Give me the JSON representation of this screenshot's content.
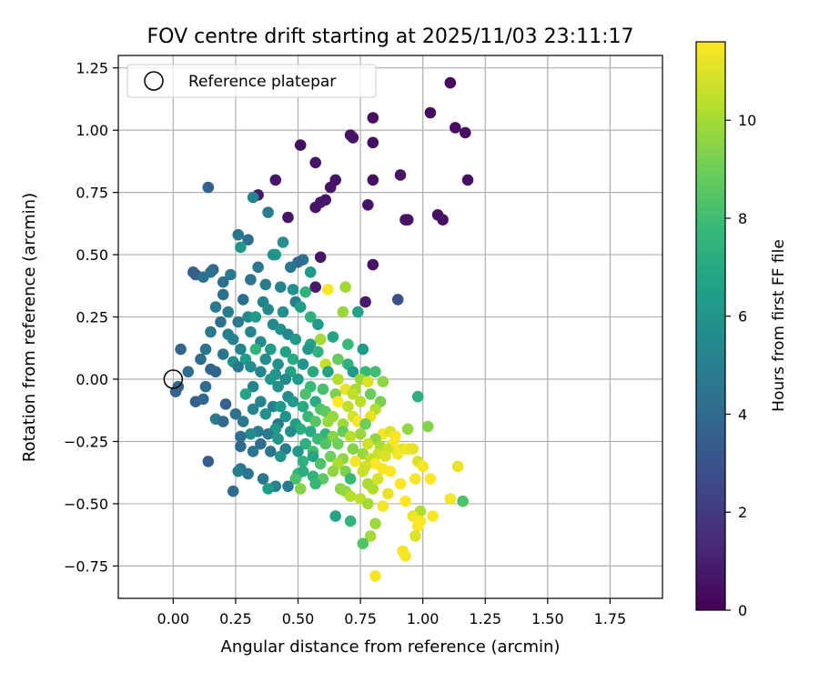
{
  "chart_data": {
    "type": "scatter",
    "title": "FOV centre drift starting at 2025/11/03 23:11:17",
    "xlabel": "Angular distance from reference (arcmin)",
    "ylabel": "Rotation from reference (arcmin)",
    "xlim": [
      -0.22,
      1.96
    ],
    "ylim": [
      -0.88,
      1.3
    ],
    "xticks": [
      0.0,
      0.25,
      0.5,
      0.75,
      1.0,
      1.25,
      1.5,
      1.75
    ],
    "xtick_labels": [
      "0.00",
      "0.25",
      "0.50",
      "0.75",
      "1.00",
      "1.25",
      "1.50",
      "1.75"
    ],
    "yticks": [
      -0.75,
      -0.5,
      -0.25,
      0.0,
      0.25,
      0.5,
      0.75,
      1.0,
      1.25
    ],
    "ytick_labels": [
      "−0.75",
      "−0.50",
      "−0.25",
      "0.00",
      "0.25",
      "0.50",
      "0.75",
      "1.00",
      "1.25"
    ],
    "grid": true,
    "legend": {
      "placement": "top-left",
      "label": "Reference platepar"
    },
    "reference_point": {
      "x": 0.0,
      "y": 0.0
    },
    "colorbar": {
      "label": "Hours from first FF file",
      "range": [
        0,
        11.6
      ],
      "ticks": [
        0,
        2,
        4,
        6,
        8,
        10
      ],
      "tick_labels": [
        "0",
        "2",
        "4",
        "6",
        "8",
        "10"
      ],
      "colormap": [
        "#440154",
        "#482878",
        "#3e4989",
        "#31688e",
        "#26828e",
        "#1f9e89",
        "#35b779",
        "#6ece58",
        "#b5de2b",
        "#fde725"
      ]
    },
    "points": [
      [
        1.11,
        1.19,
        0.3
      ],
      [
        1.03,
        1.07,
        0.4
      ],
      [
        0.8,
        1.05,
        0.5
      ],
      [
        1.13,
        1.01,
        0.4
      ],
      [
        1.17,
        0.99,
        0.5
      ],
      [
        0.51,
        0.94,
        0.5
      ],
      [
        0.71,
        0.98,
        0.6
      ],
      [
        0.72,
        0.97,
        0.6
      ],
      [
        0.8,
        0.95,
        0.5
      ],
      [
        0.57,
        0.87,
        0.6
      ],
      [
        0.91,
        0.82,
        0.6
      ],
      [
        0.41,
        0.8,
        0.7
      ],
      [
        0.65,
        0.8,
        0.6
      ],
      [
        0.8,
        0.8,
        0.5
      ],
      [
        1.18,
        0.8,
        0.5
      ],
      [
        0.63,
        0.77,
        0.6
      ],
      [
        0.34,
        0.74,
        0.8
      ],
      [
        0.61,
        0.72,
        0.7
      ],
      [
        0.59,
        0.71,
        0.7
      ],
      [
        0.57,
        0.69,
        0.6
      ],
      [
        0.78,
        0.7,
        0.7
      ],
      [
        1.06,
        0.66,
        0.5
      ],
      [
        1.08,
        0.64,
        0.5
      ],
      [
        0.94,
        0.64,
        0.6
      ],
      [
        0.93,
        0.64,
        0.6
      ],
      [
        0.46,
        0.65,
        0.7
      ],
      [
        0.59,
        0.49,
        0.7
      ],
      [
        0.8,
        0.46,
        0.6
      ],
      [
        0.57,
        0.37,
        0.8
      ],
      [
        0.77,
        0.31,
        0.9
      ],
      [
        0.9,
        0.32,
        2.9
      ],
      [
        0.14,
        0.77,
        3.6
      ],
      [
        0.32,
        0.73,
        5.2
      ],
      [
        0.38,
        0.67,
        4.8
      ],
      [
        0.26,
        0.58,
        4.6
      ],
      [
        0.3,
        0.56,
        4.2
      ],
      [
        0.27,
        0.53,
        6.1
      ],
      [
        0.44,
        0.55,
        5.8
      ],
      [
        0.41,
        0.5,
        6.5
      ],
      [
        0.4,
        0.5,
        6.0
      ],
      [
        0.52,
        0.48,
        4.3
      ],
      [
        0.5,
        0.47,
        4.0
      ],
      [
        0.47,
        0.45,
        4.6
      ],
      [
        0.55,
        0.43,
        6.3
      ],
      [
        0.34,
        0.45,
        4.5
      ],
      [
        0.16,
        0.44,
        3.8
      ],
      [
        0.15,
        0.43,
        4.2
      ],
      [
        0.08,
        0.43,
        3.6
      ],
      [
        0.09,
        0.42,
        3.4
      ],
      [
        0.12,
        0.41,
        4.3
      ],
      [
        0.23,
        0.42,
        4.8
      ],
      [
        0.31,
        0.4,
        4.5
      ],
      [
        0.2,
        0.39,
        4.3
      ],
      [
        0.37,
        0.38,
        4.8
      ],
      [
        0.43,
        0.37,
        5.2
      ],
      [
        0.48,
        0.36,
        5.8
      ],
      [
        0.53,
        0.35,
        7.5
      ],
      [
        0.62,
        0.36,
        11.5
      ],
      [
        0.69,
        0.37,
        10.0
      ],
      [
        0.2,
        0.34,
        4.3
      ],
      [
        0.28,
        0.32,
        4.2
      ],
      [
        0.36,
        0.31,
        5.3
      ],
      [
        0.49,
        0.31,
        5.0
      ],
      [
        0.38,
        0.28,
        5.5
      ],
      [
        0.17,
        0.29,
        4.7
      ],
      [
        0.22,
        0.27,
        4.8
      ],
      [
        0.44,
        0.27,
        5.8
      ],
      [
        0.51,
        0.29,
        6.5
      ],
      [
        0.55,
        0.25,
        7.4
      ],
      [
        0.68,
        0.27,
        9.8
      ],
      [
        0.74,
        0.27,
        6.7
      ],
      [
        0.3,
        0.25,
        5.4
      ],
      [
        0.33,
        0.25,
        6.4
      ],
      [
        0.26,
        0.23,
        4.7
      ],
      [
        0.19,
        0.23,
        4.2
      ],
      [
        0.4,
        0.22,
        5.5
      ],
      [
        0.43,
        0.2,
        5.9
      ],
      [
        0.46,
        0.18,
        5.4
      ],
      [
        0.58,
        0.22,
        6.3
      ],
      [
        0.15,
        0.19,
        4.6
      ],
      [
        0.31,
        0.19,
        5.4
      ],
      [
        0.22,
        0.18,
        5.0
      ],
      [
        0.64,
        0.17,
        6.8
      ],
      [
        0.49,
        0.16,
        6.2
      ],
      [
        0.24,
        0.16,
        5.2
      ],
      [
        0.35,
        0.15,
        5.6
      ],
      [
        0.59,
        0.16,
        10.0
      ],
      [
        0.55,
        0.14,
        6.8
      ],
      [
        0.7,
        0.14,
        7.8
      ],
      [
        0.03,
        0.12,
        3.7
      ],
      [
        0.13,
        0.12,
        4.4
      ],
      [
        0.27,
        0.12,
        5.3
      ],
      [
        0.39,
        0.12,
        6.3
      ],
      [
        0.33,
        0.12,
        7.6
      ],
      [
        0.45,
        0.11,
        6.7
      ],
      [
        0.54,
        0.12,
        6.2
      ],
      [
        0.58,
        0.11,
        7.5
      ],
      [
        0.76,
        0.12,
        6.3
      ],
      [
        0.2,
        0.1,
        4.5
      ],
      [
        0.11,
        0.08,
        4.0
      ],
      [
        0.24,
        0.07,
        5.8
      ],
      [
        0.29,
        0.08,
        6.4
      ],
      [
        0.37,
        0.08,
        5.6
      ],
      [
        0.48,
        0.08,
        7.0
      ],
      [
        0.66,
        0.08,
        8.8
      ],
      [
        0.31,
        0.05,
        5.6
      ],
      [
        0.15,
        0.04,
        3.7
      ],
      [
        0.26,
        0.05,
        4.6
      ],
      [
        0.42,
        0.06,
        5.8
      ],
      [
        0.52,
        0.06,
        6.0
      ],
      [
        0.61,
        0.06,
        10.6
      ],
      [
        0.7,
        0.06,
        7.5
      ],
      [
        0.06,
        0.03,
        4.1
      ],
      [
        0.17,
        0.03,
        3.8
      ],
      [
        0.35,
        0.03,
        5.4
      ],
      [
        0.41,
        0.02,
        6.0
      ],
      [
        0.47,
        0.03,
        6.7
      ],
      [
        0.56,
        0.03,
        7.0
      ],
      [
        0.62,
        0.03,
        6.6
      ],
      [
        0.72,
        0.03,
        6.3
      ],
      [
        0.77,
        0.03,
        7.8
      ],
      [
        0.81,
        0.03,
        8.0
      ],
      [
        0.39,
        0.0,
        6.2
      ],
      [
        0.45,
        0.0,
        5.5
      ],
      [
        0.5,
        0.0,
        6.3
      ],
      [
        0.66,
        0.0,
        10.3
      ],
      [
        0.75,
        0.0,
        9.8
      ],
      [
        0.78,
        -0.01,
        11.0
      ],
      [
        0.84,
        -0.01,
        9.6
      ],
      [
        0.02,
        -0.03,
        3.7
      ],
      [
        0.13,
        -0.03,
        4.2
      ],
      [
        0.32,
        -0.03,
        5.3
      ],
      [
        0.42,
        -0.03,
        5.9
      ],
      [
        0.55,
        -0.03,
        7.8
      ],
      [
        0.6,
        -0.04,
        8.2
      ],
      [
        0.69,
        -0.04,
        11.2
      ],
      [
        0.73,
        -0.04,
        10.1
      ],
      [
        0.01,
        -0.05,
        3.8
      ],
      [
        0.29,
        -0.06,
        6.8
      ],
      [
        0.46,
        -0.07,
        5.6
      ],
      [
        0.53,
        -0.06,
        8.2
      ],
      [
        0.65,
        -0.06,
        9.3
      ],
      [
        0.72,
        -0.06,
        10.5
      ],
      [
        0.79,
        -0.06,
        8.9
      ],
      [
        0.98,
        -0.07,
        7.2
      ],
      [
        0.09,
        -0.09,
        3.5
      ],
      [
        0.12,
        -0.08,
        3.8
      ],
      [
        0.35,
        -0.09,
        5.3
      ],
      [
        0.48,
        -0.09,
        6.2
      ],
      [
        0.57,
        -0.09,
        7.1
      ],
      [
        0.66,
        -0.09,
        11.6
      ],
      [
        0.75,
        -0.09,
        10.4
      ],
      [
        0.83,
        -0.09,
        9.2
      ],
      [
        0.21,
        -0.1,
        3.6
      ],
      [
        0.4,
        -0.11,
        5.1
      ],
      [
        0.43,
        -0.11,
        6.3
      ],
      [
        0.52,
        -0.11,
        7.1
      ],
      [
        0.59,
        -0.12,
        8.4
      ],
      [
        0.7,
        -0.11,
        10.5
      ],
      [
        0.81,
        -0.12,
        10.3
      ],
      [
        0.32,
        -0.12,
        5.3
      ],
      [
        0.61,
        -0.13,
        8.7
      ],
      [
        0.25,
        -0.14,
        4.3
      ],
      [
        0.37,
        -0.14,
        5.8
      ],
      [
        0.45,
        -0.15,
        6.0
      ],
      [
        0.54,
        -0.15,
        7.8
      ],
      [
        0.64,
        -0.15,
        9.8
      ],
      [
        0.72,
        -0.15,
        10.9
      ],
      [
        0.79,
        -0.15,
        11.2
      ],
      [
        0.17,
        -0.16,
        4.8
      ],
      [
        0.2,
        -0.17,
        3.9
      ],
      [
        0.28,
        -0.17,
        4.6
      ],
      [
        0.42,
        -0.18,
        4.7
      ],
      [
        0.49,
        -0.18,
        6.5
      ],
      [
        0.57,
        -0.17,
        8.5
      ],
      [
        0.62,
        -0.17,
        9.8
      ],
      [
        0.68,
        -0.18,
        9.9
      ],
      [
        0.74,
        -0.17,
        11.5
      ],
      [
        0.77,
        -0.18,
        9.0
      ],
      [
        0.41,
        -0.2,
        6.3
      ],
      [
        0.51,
        -0.2,
        7.2
      ],
      [
        0.34,
        -0.21,
        4.8
      ],
      [
        0.47,
        -0.21,
        5.7
      ],
      [
        0.31,
        -0.22,
        5.6
      ],
      [
        0.38,
        -0.22,
        4.8
      ],
      [
        0.55,
        -0.21,
        7.0
      ],
      [
        0.61,
        -0.22,
        7.5
      ],
      [
        0.68,
        -0.21,
        8.8
      ],
      [
        0.75,
        -0.22,
        9.8
      ],
      [
        0.84,
        -0.22,
        11.5
      ],
      [
        0.87,
        -0.21,
        11.0
      ],
      [
        0.94,
        -0.2,
        9.7
      ],
      [
        1.02,
        -0.19,
        9.4
      ],
      [
        0.27,
        -0.23,
        4.2
      ],
      [
        0.42,
        -0.24,
        6.1
      ],
      [
        0.58,
        -0.24,
        7.9
      ],
      [
        0.64,
        -0.23,
        9.5
      ],
      [
        0.71,
        -0.23,
        10.4
      ],
      [
        0.81,
        -0.24,
        9.6
      ],
      [
        0.89,
        -0.23,
        11.6
      ],
      [
        0.53,
        -0.26,
        7.4
      ],
      [
        0.35,
        -0.26,
        4.2
      ],
      [
        0.61,
        -0.26,
        8.4
      ],
      [
        0.66,
        -0.26,
        9.0
      ],
      [
        0.78,
        -0.26,
        10.8
      ],
      [
        0.83,
        -0.27,
        10.1
      ],
      [
        0.88,
        -0.26,
        11.5
      ],
      [
        0.27,
        -0.27,
        4.0
      ],
      [
        0.45,
        -0.28,
        4.9
      ],
      [
        0.72,
        -0.28,
        9.4
      ],
      [
        0.92,
        -0.28,
        11.2
      ],
      [
        0.86,
        -0.28,
        10.8
      ],
      [
        0.32,
        -0.29,
        4.4
      ],
      [
        0.39,
        -0.29,
        4.6
      ],
      [
        0.5,
        -0.29,
        6.2
      ],
      [
        0.56,
        -0.29,
        8.1
      ],
      [
        0.76,
        -0.3,
        9.8
      ],
      [
        0.82,
        -0.3,
        10.7
      ],
      [
        0.9,
        -0.3,
        11.4
      ],
      [
        0.94,
        -0.28,
        11.4
      ],
      [
        0.96,
        -0.28,
        11.2
      ],
      [
        0.63,
        -0.31,
        9.0
      ],
      [
        0.43,
        -0.31,
        6.0
      ],
      [
        0.56,
        -0.31,
        6.8
      ],
      [
        0.68,
        -0.32,
        9.6
      ],
      [
        0.79,
        -0.32,
        10.6
      ],
      [
        0.85,
        -0.31,
        11.0
      ],
      [
        0.14,
        -0.33,
        3.4
      ],
      [
        0.52,
        -0.33,
        7.4
      ],
      [
        0.73,
        -0.33,
        11.4
      ],
      [
        0.98,
        -0.33,
        11.0
      ],
      [
        0.59,
        -0.34,
        8.3
      ],
      [
        0.66,
        -0.34,
        10.2
      ],
      [
        0.81,
        -0.34,
        11.6
      ],
      [
        0.77,
        -0.35,
        10.8
      ],
      [
        0.84,
        -0.36,
        11.5
      ],
      [
        1.0,
        -0.35,
        11.5
      ],
      [
        1.14,
        -0.35,
        11.2
      ],
      [
        0.27,
        -0.36,
        4.3
      ],
      [
        0.26,
        -0.37,
        5.0
      ],
      [
        0.64,
        -0.37,
        9.6
      ],
      [
        0.69,
        -0.37,
        9.3
      ],
      [
        0.5,
        -0.38,
        7.6
      ],
      [
        0.52,
        -0.37,
        7.2
      ],
      [
        0.3,
        -0.38,
        4.5
      ],
      [
        0.56,
        -0.39,
        7.5
      ],
      [
        0.76,
        -0.37,
        10.7
      ],
      [
        0.87,
        -0.37,
        11.6
      ],
      [
        0.36,
        -0.4,
        4.6
      ],
      [
        0.71,
        -0.4,
        7.8
      ],
      [
        0.49,
        -0.4,
        8.2
      ],
      [
        0.6,
        -0.4,
        8.6
      ],
      [
        0.82,
        -0.4,
        10.9
      ],
      [
        0.97,
        -0.4,
        11.5
      ],
      [
        0.41,
        -0.43,
        5.2
      ],
      [
        0.46,
        -0.43,
        4.8
      ],
      [
        0.57,
        -0.42,
        7.8
      ],
      [
        0.67,
        -0.44,
        9.6
      ],
      [
        0.78,
        -0.42,
        10.1
      ],
      [
        0.91,
        -0.42,
        11.7
      ],
      [
        1.03,
        -0.4,
        11.6
      ],
      [
        0.38,
        -0.44,
        6.4
      ],
      [
        0.51,
        -0.44,
        9.5
      ],
      [
        0.69,
        -0.45,
        9.7
      ],
      [
        0.8,
        -0.44,
        10.2
      ],
      [
        0.24,
        -0.45,
        4.1
      ],
      [
        0.86,
        -0.46,
        11.2
      ],
      [
        0.71,
        -0.47,
        10.3
      ],
      [
        0.75,
        -0.48,
        10.5
      ],
      [
        0.93,
        -0.49,
        11.6
      ],
      [
        1.11,
        -0.48,
        11.4
      ],
      [
        1.16,
        -0.49,
        8.3
      ],
      [
        0.78,
        -0.5,
        10.0
      ],
      [
        0.84,
        -0.51,
        11.4
      ],
      [
        0.99,
        -0.53,
        10.2
      ],
      [
        0.96,
        -0.55,
        11.3
      ],
      [
        1.04,
        -0.55,
        11.5
      ],
      [
        0.65,
        -0.55,
        6.8
      ],
      [
        0.71,
        -0.57,
        7.6
      ],
      [
        0.99,
        -0.57,
        11.5
      ],
      [
        0.81,
        -0.58,
        9.9
      ],
      [
        0.98,
        -0.59,
        11.6
      ],
      [
        0.79,
        -0.63,
        10.0
      ],
      [
        0.97,
        -0.63,
        11.0
      ],
      [
        0.76,
        -0.66,
        8.4
      ],
      [
        0.92,
        -0.69,
        11.5
      ],
      [
        0.93,
        -0.71,
        11.4
      ],
      [
        0.81,
        -0.79,
        11.5
      ]
    ]
  }
}
